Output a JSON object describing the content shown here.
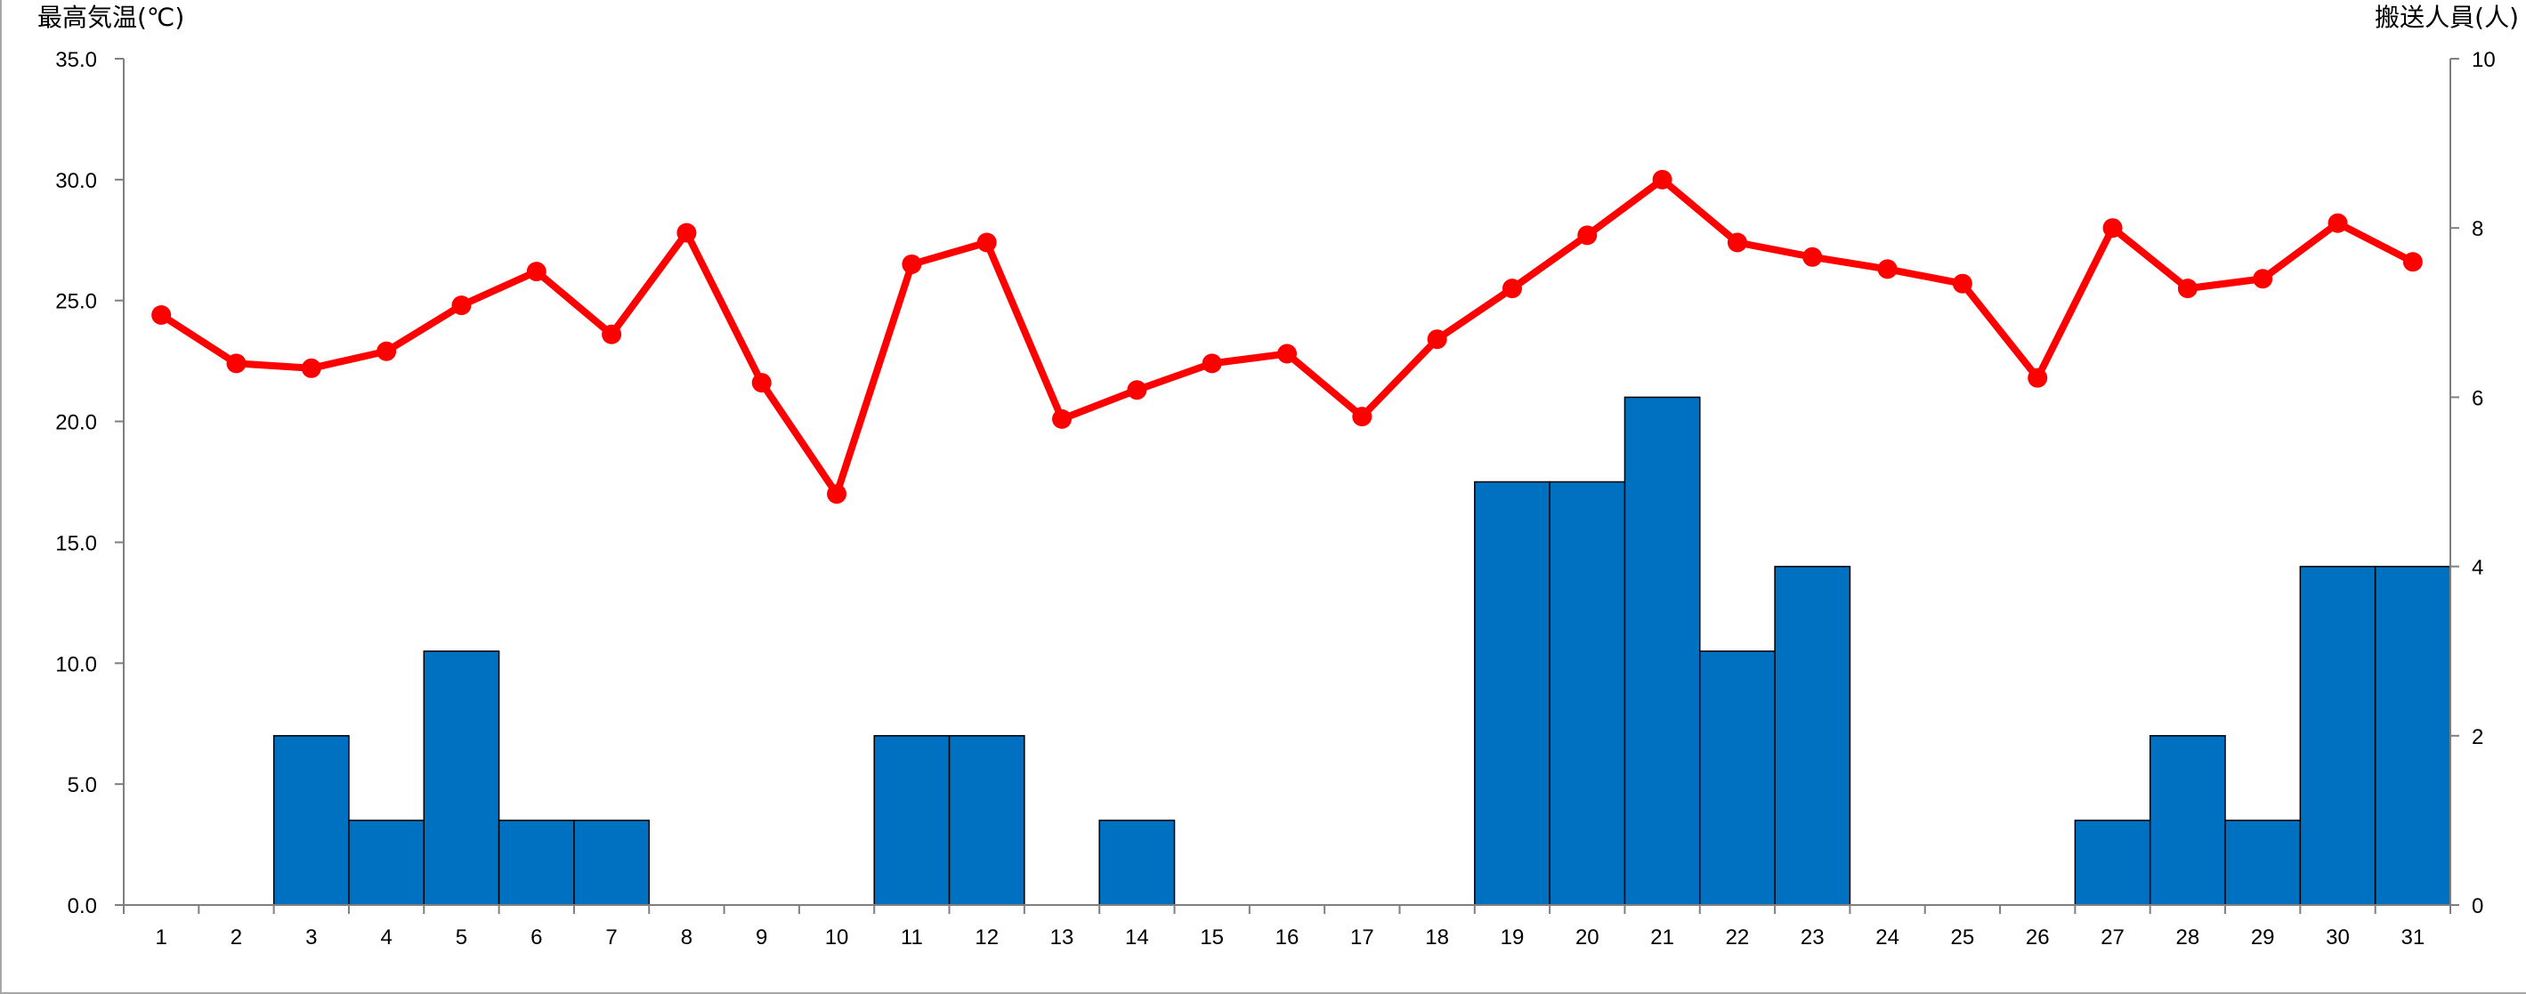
{
  "chart_data": {
    "type": "bar+line",
    "categories": [
      "1",
      "2",
      "3",
      "4",
      "5",
      "6",
      "7",
      "8",
      "9",
      "10",
      "11",
      "12",
      "13",
      "14",
      "15",
      "16",
      "17",
      "18",
      "19",
      "20",
      "21",
      "22",
      "23",
      "24",
      "25",
      "26",
      "27",
      "28",
      "29",
      "30",
      "31"
    ],
    "series": [
      {
        "type": "bar",
        "axis": "right",
        "color": "#0070c0",
        "values": [
          0,
          0,
          2,
          1,
          3,
          1,
          1,
          0,
          0,
          0,
          2,
          2,
          0,
          1,
          0,
          0,
          0,
          0,
          5,
          5,
          6,
          3,
          4,
          0,
          0,
          0,
          1,
          2,
          1,
          4,
          4
        ]
      },
      {
        "type": "line",
        "axis": "left",
        "color": "#ff0000",
        "values": [
          24.4,
          22.4,
          22.2,
          22.9,
          24.8,
          26.2,
          23.6,
          27.8,
          21.6,
          17.0,
          26.5,
          27.4,
          20.1,
          21.3,
          22.4,
          22.8,
          20.2,
          23.4,
          25.5,
          27.7,
          30.0,
          27.4,
          26.8,
          26.3,
          25.7,
          21.8,
          28.0,
          25.5,
          25.9,
          28.2,
          26.6
        ]
      }
    ],
    "ylabel_left": "最高気温(℃)",
    "ylabel_right": "搬送人員(人)",
    "ylim_left": [
      0,
      35
    ],
    "ylim_right": [
      0,
      10
    ],
    "yticks_left": [
      "0.0",
      "5.0",
      "10.0",
      "15.0",
      "20.0",
      "25.0",
      "30.0",
      "35.0"
    ],
    "yticks_right": [
      "0",
      "2",
      "4",
      "6",
      "8",
      "10"
    ],
    "grid": false,
    "legend": "none"
  }
}
